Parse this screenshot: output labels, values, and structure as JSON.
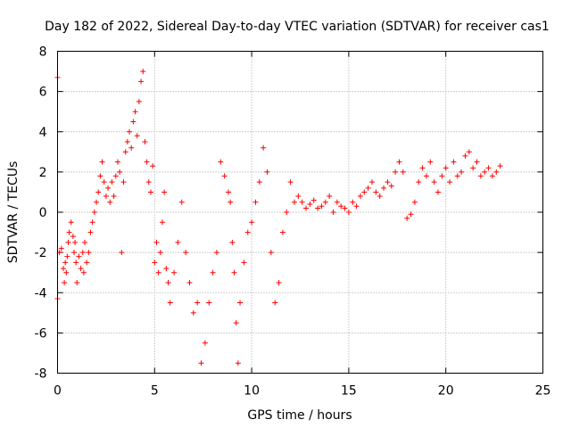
{
  "chart_data": {
    "type": "scatter",
    "title": "Day 182 of 2022, Sidereal Day-to-day VTEC variation (SDTVAR) for receiver cas1",
    "xlabel": "GPS time / hours",
    "ylabel": "SDTVAR / TECUs",
    "xlim": [
      0,
      25
    ],
    "ylim": [
      -8,
      8
    ],
    "xticks": [
      0,
      5,
      10,
      15,
      20,
      25
    ],
    "yticks": [
      -8,
      -6,
      -4,
      -2,
      0,
      2,
      4,
      6,
      8
    ],
    "grid": true,
    "marker": "plus",
    "color": "#ff0000",
    "series": [
      {
        "name": "SDTVAR",
        "x": [
          0.0,
          0.0,
          0.1,
          0.2,
          0.3,
          0.35,
          0.4,
          0.45,
          0.5,
          0.55,
          0.6,
          0.7,
          0.8,
          0.85,
          0.9,
          0.95,
          1.0,
          1.1,
          1.2,
          1.3,
          1.35,
          1.4,
          1.5,
          1.6,
          1.7,
          1.8,
          1.9,
          2.0,
          2.1,
          2.2,
          2.3,
          2.4,
          2.5,
          2.6,
          2.7,
          2.8,
          2.9,
          3.0,
          3.1,
          3.2,
          3.3,
          3.4,
          3.5,
          3.6,
          3.7,
          3.8,
          3.9,
          4.0,
          4.1,
          4.2,
          4.3,
          4.4,
          4.5,
          4.6,
          4.7,
          4.8,
          4.9,
          5.0,
          5.1,
          5.2,
          5.3,
          5.4,
          5.5,
          5.6,
          5.7,
          5.8,
          6.0,
          6.2,
          6.4,
          6.6,
          6.8,
          7.0,
          7.2,
          7.4,
          7.6,
          7.8,
          8.0,
          8.2,
          8.4,
          8.6,
          8.8,
          8.9,
          9.0,
          9.1,
          9.2,
          9.3,
          9.4,
          9.6,
          9.8,
          10.0,
          10.2,
          10.4,
          10.6,
          10.8,
          11.0,
          11.2,
          11.4,
          11.6,
          11.8,
          12.0,
          12.2,
          12.4,
          12.6,
          12.8,
          13.0,
          13.2,
          13.4,
          13.6,
          13.8,
          14.0,
          14.2,
          14.4,
          14.6,
          14.8,
          15.0,
          15.2,
          15.4,
          15.6,
          15.8,
          16.0,
          16.2,
          16.4,
          16.6,
          16.8,
          17.0,
          17.2,
          17.4,
          17.6,
          17.8,
          18.0,
          18.2,
          18.4,
          18.6,
          18.8,
          19.0,
          19.2,
          19.4,
          19.6,
          19.8,
          20.0,
          20.2,
          20.4,
          20.6,
          20.8,
          21.0,
          21.2,
          21.4,
          21.6,
          21.8,
          22.0,
          22.2,
          22.4,
          22.6,
          22.8
        ],
        "y": [
          6.7,
          -4.3,
          -2.0,
          -1.8,
          -2.8,
          -3.5,
          -2.5,
          -3.0,
          -2.2,
          -1.5,
          -1.0,
          -0.5,
          -1.2,
          -2.0,
          -1.5,
          -2.5,
          -3.5,
          -2.2,
          -2.8,
          -2.0,
          -3.0,
          -1.5,
          -2.5,
          -2.0,
          -1.0,
          -0.5,
          0.0,
          0.5,
          1.0,
          1.8,
          2.5,
          1.5,
          0.8,
          1.2,
          0.5,
          1.5,
          0.8,
          1.8,
          2.5,
          2.0,
          -2.0,
          1.5,
          3.0,
          3.5,
          4.0,
          3.2,
          4.5,
          5.0,
          3.8,
          5.5,
          6.5,
          7.0,
          3.5,
          2.5,
          1.5,
          1.0,
          2.3,
          -2.5,
          -1.5,
          -3.0,
          -2.0,
          -0.5,
          1.0,
          -2.8,
          -3.5,
          -4.5,
          -3.0,
          -1.5,
          0.5,
          -2.0,
          -3.5,
          -5.0,
          -4.5,
          -7.5,
          -6.5,
          -4.5,
          -3.0,
          -2.0,
          2.5,
          1.8,
          1.0,
          0.5,
          -1.5,
          -3.0,
          -5.5,
          -7.5,
          -4.5,
          -2.5,
          -1.0,
          -0.5,
          0.5,
          1.5,
          3.2,
          2.0,
          -2.0,
          -4.5,
          -3.5,
          -1.0,
          0.0,
          1.5,
          0.5,
          0.8,
          0.5,
          0.2,
          0.4,
          0.6,
          0.2,
          0.3,
          0.5,
          0.8,
          0.0,
          0.5,
          0.3,
          0.2,
          0.0,
          0.5,
          0.3,
          0.8,
          1.0,
          1.2,
          1.5,
          1.0,
          0.8,
          1.2,
          1.5,
          1.3,
          2.0,
          2.5,
          2.0,
          -0.3,
          -0.1,
          0.5,
          1.5,
          2.2,
          1.8,
          2.5,
          1.5,
          1.0,
          1.8,
          2.2,
          1.5,
          2.5,
          1.8,
          2.0,
          2.8,
          3.0,
          2.2,
          2.5,
          1.8,
          2.0,
          2.2,
          1.8,
          2.0,
          2.3
        ]
      }
    ]
  }
}
